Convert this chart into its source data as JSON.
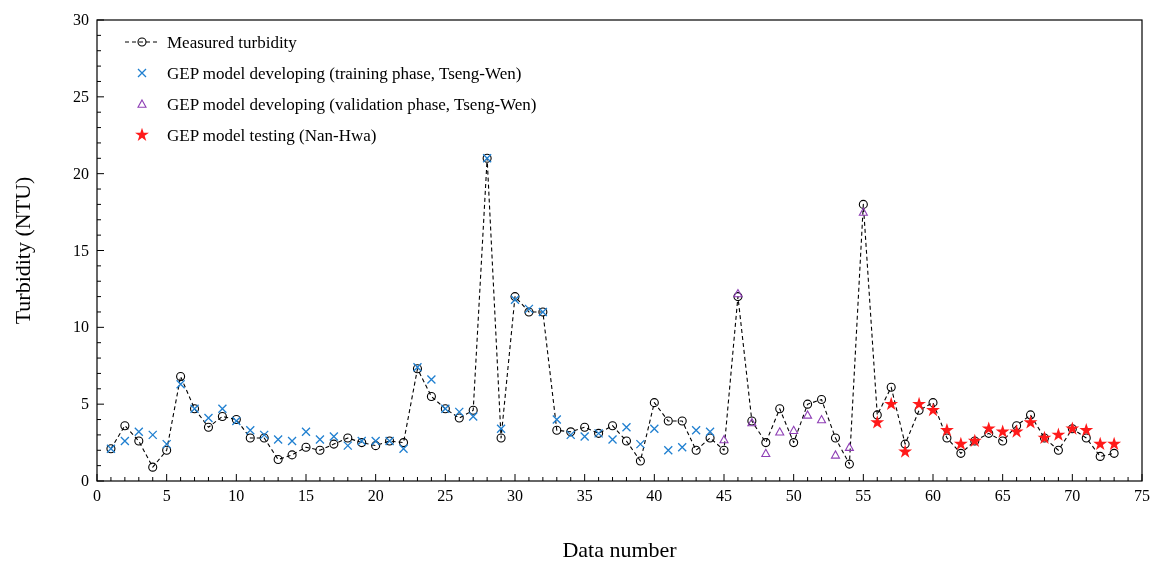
{
  "chart_data": {
    "type": "line",
    "xlabel": "Data number",
    "ylabel": "Turbidity (NTU)",
    "xlim": [
      0,
      75
    ],
    "ylim": [
      0,
      30
    ],
    "xticks": [
      0,
      {
        "value": 1,
        "label": null
      },
      {
        "value": 2,
        "label": null
      },
      {
        "value": 3,
        "label": null
      },
      {
        "value": 4,
        "label": null
      },
      5,
      {
        "value": 6,
        "label": null
      },
      {
        "value": 7,
        "label": null
      },
      {
        "value": 8,
        "label": null
      },
      {
        "value": 9,
        "label": null
      },
      10,
      {
        "value": 11,
        "label": null
      },
      {
        "value": 12,
        "label": null
      },
      {
        "value": 13,
        "label": null
      },
      {
        "value": 14,
        "label": null
      },
      15,
      {
        "value": 16,
        "label": null
      },
      {
        "value": 17,
        "label": null
      },
      {
        "value": 18,
        "label": null
      },
      {
        "value": 19,
        "label": null
      },
      20,
      {
        "value": 21,
        "label": null
      },
      {
        "value": 22,
        "label": null
      },
      {
        "value": 23,
        "label": null
      },
      {
        "value": 24,
        "label": null
      },
      25,
      {
        "value": 26,
        "label": null
      },
      {
        "value": 27,
        "label": null
      },
      {
        "value": 28,
        "label": null
      },
      {
        "value": 29,
        "label": null
      },
      30,
      {
        "value": 31,
        "label": null
      },
      {
        "value": 32,
        "label": null
      },
      {
        "value": 33,
        "label": null
      },
      {
        "value": 34,
        "label": null
      },
      35,
      {
        "value": 36,
        "label": null
      },
      {
        "value": 37,
        "label": null
      },
      {
        "value": 38,
        "label": null
      },
      {
        "value": 39,
        "label": null
      },
      40,
      {
        "value": 41,
        "label": null
      },
      {
        "value": 42,
        "label": null
      },
      {
        "value": 43,
        "label": null
      },
      {
        "value": 44,
        "label": null
      },
      45,
      {
        "value": 46,
        "label": null
      },
      {
        "value": 47,
        "label": null
      },
      {
        "value": 48,
        "label": null
      },
      {
        "value": 49,
        "label": null
      },
      50,
      {
        "value": 51,
        "label": null
      },
      {
        "value": 52,
        "label": null
      },
      {
        "value": 53,
        "label": null
      },
      {
        "value": 54,
        "label": null
      },
      55,
      {
        "value": 56,
        "label": null
      },
      {
        "value": 57,
        "label": null
      },
      {
        "value": 58,
        "label": null
      },
      {
        "value": 59,
        "label": null
      },
      60,
      {
        "value": 61,
        "label": null
      },
      {
        "value": 62,
        "label": null
      },
      {
        "value": 63,
        "label": null
      },
      {
        "value": 64,
        "label": null
      },
      65,
      {
        "value": 66,
        "label": null
      },
      {
        "value": 67,
        "label": null
      },
      {
        "value": 68,
        "label": null
      },
      {
        "value": 69,
        "label": null
      },
      70,
      {
        "value": 71,
        "label": null
      },
      {
        "value": 72,
        "label": null
      },
      {
        "value": 73,
        "label": null
      },
      {
        "value": 74,
        "label": null
      },
      75
    ],
    "yticks": [
      0,
      {
        "value": 1,
        "label": null
      },
      {
        "value": 2,
        "label": null
      },
      {
        "value": 3,
        "label": null
      },
      {
        "value": 4,
        "label": null
      },
      5,
      {
        "value": 6,
        "label": null
      },
      {
        "value": 7,
        "label": null
      },
      {
        "value": 8,
        "label": null
      },
      {
        "value": 9,
        "label": null
      },
      10,
      {
        "value": 11,
        "label": null
      },
      {
        "value": 12,
        "label": null
      },
      {
        "value": 13,
        "label": null
      },
      {
        "value": 14,
        "label": null
      },
      15,
      {
        "value": 16,
        "label": null
      },
      {
        "value": 17,
        "label": null
      },
      {
        "value": 18,
        "label": null
      },
      {
        "value": 19,
        "label": null
      },
      20,
      {
        "value": 21,
        "label": null
      },
      {
        "value": 22,
        "label": null
      },
      {
        "value": 23,
        "label": null
      },
      {
        "value": 24,
        "label": null
      },
      25,
      {
        "value": 26,
        "label": null
      },
      {
        "value": 27,
        "label": null
      },
      {
        "value": 28,
        "label": null
      },
      {
        "value": 29,
        "label": null
      },
      30
    ],
    "grid": false,
    "legend": "top left",
    "series": [
      {
        "name": "Measured turbidity",
        "color": "#000000",
        "marker": "circle",
        "line_style": "dashed",
        "x": [
          1,
          2,
          3,
          4,
          5,
          6,
          7,
          8,
          9,
          10,
          11,
          12,
          13,
          14,
          15,
          16,
          17,
          18,
          19,
          20,
          21,
          22,
          23,
          24,
          25,
          26,
          27,
          28,
          29,
          30,
          31,
          32,
          33,
          34,
          35,
          36,
          37,
          38,
          39,
          40,
          41,
          42,
          43,
          44,
          45,
          46,
          47,
          48,
          49,
          50,
          51,
          52,
          53,
          54,
          55,
          56,
          57,
          58,
          59,
          60,
          61,
          62,
          63,
          64,
          65,
          66,
          67,
          68,
          69,
          70,
          71,
          72,
          73
        ],
        "values": [
          2.1,
          3.6,
          2.6,
          0.9,
          2.0,
          6.8,
          4.7,
          3.5,
          4.2,
          4.0,
          2.8,
          2.8,
          1.4,
          1.7,
          2.2,
          2.0,
          2.4,
          2.8,
          2.5,
          2.3,
          2.6,
          2.5,
          7.3,
          5.5,
          4.7,
          4.1,
          4.6,
          21.0,
          2.8,
          12.0,
          11.0,
          11.0,
          3.3,
          3.2,
          3.5,
          3.1,
          3.6,
          2.6,
          1.3,
          5.1,
          3.9,
          3.9,
          2.0,
          2.8,
          2.0,
          12.0,
          3.9,
          2.5,
          4.7,
          2.5,
          5.0,
          5.3,
          2.8,
          1.1,
          18.0,
          4.3,
          6.1,
          2.4,
          4.6,
          5.1,
          2.8,
          1.8,
          2.6,
          3.1,
          2.6,
          3.6,
          4.3,
          2.8,
          2.0,
          3.4,
          2.8,
          1.6,
          1.8
        ]
      },
      {
        "name": "GEP model developing (training phase, Tseng-Wen)",
        "type": "scatter",
        "color": "#1f7fd0",
        "marker": "cross",
        "x": [
          1,
          2,
          3,
          4,
          5,
          6,
          7,
          8,
          9,
          10,
          11,
          12,
          13,
          14,
          15,
          16,
          17,
          18,
          19,
          20,
          21,
          22,
          23,
          24,
          25,
          26,
          27,
          28,
          29,
          30,
          31,
          32,
          33,
          34,
          35,
          36,
          37,
          38,
          39,
          40,
          41,
          42,
          43,
          44
        ],
        "values": [
          2.1,
          2.6,
          3.2,
          3.0,
          2.4,
          6.3,
          4.7,
          4.1,
          4.7,
          3.9,
          3.3,
          3.0,
          2.7,
          2.6,
          3.2,
          2.7,
          2.9,
          2.3,
          2.6,
          2.6,
          2.6,
          2.1,
          7.4,
          6.6,
          4.7,
          4.5,
          4.2,
          21.0,
          3.4,
          11.8,
          11.2,
          11.0,
          4.0,
          3.0,
          2.9,
          3.1,
          2.7,
          3.5,
          2.4,
          3.4,
          2.0,
          2.2,
          3.3,
          3.2
        ]
      },
      {
        "name": "GEP model developing (validation phase, Tseng-Wen)",
        "type": "scatter",
        "color": "#8e3fb5",
        "marker": "triangle",
        "x": [
          45,
          46,
          47,
          48,
          49,
          50,
          51,
          52,
          53,
          54,
          55
        ],
        "values": [
          2.7,
          12.2,
          3.8,
          1.8,
          3.2,
          3.3,
          4.3,
          4.0,
          1.7,
          2.2,
          17.5
        ]
      },
      {
        "name": "GEP model testing (Nan-Hwa)",
        "type": "scatter",
        "color": "#ff1a1a",
        "marker": "star",
        "x": [
          56,
          57,
          58,
          59,
          60,
          61,
          62,
          63,
          64,
          65,
          66,
          67,
          68,
          69,
          70,
          71,
          72,
          73
        ],
        "values": [
          3.8,
          5.0,
          1.9,
          5.0,
          4.6,
          3.3,
          2.4,
          2.6,
          3.4,
          3.2,
          3.2,
          3.8,
          2.8,
          3.0,
          3.4,
          3.3,
          2.4,
          2.4
        ]
      }
    ]
  }
}
